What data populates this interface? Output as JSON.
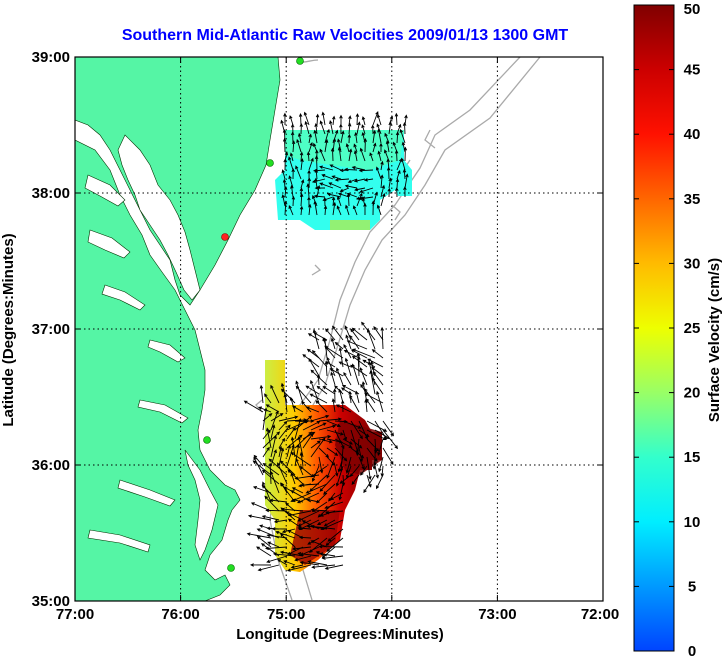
{
  "title": "Southern Mid-Atlantic Raw Velocities 2009/01/13 1300 GMT",
  "xlabel": "Longitude (Degrees:Minutes)",
  "ylabel": "Latitude (Degrees:Minutes)",
  "x_ticks": [
    "77:00",
    "76:00",
    "75:00",
    "74:00",
    "73:00",
    "72:00"
  ],
  "y_ticks": [
    "39:00",
    "38:00",
    "37:00",
    "36:00",
    "35:00"
  ],
  "colorbar": {
    "label": "Surface Velocity (cm/s)",
    "ticks": [
      "0",
      "5",
      "10",
      "15",
      "20",
      "25",
      "30",
      "35",
      "40",
      "45",
      "50"
    ],
    "min": 0,
    "max": 50
  },
  "colors": {
    "land": "#55f5a5",
    "water": "#ffffff",
    "bathymetry": "#aaaaaa",
    "title": "#0000ff",
    "station_green": "#22dd22",
    "station_red": "#ff2222"
  },
  "chart_data": {
    "type": "map",
    "x_range_deg_west": [
      77,
      72
    ],
    "y_range_deg_north": [
      35,
      39
    ],
    "grid": true
  }
}
